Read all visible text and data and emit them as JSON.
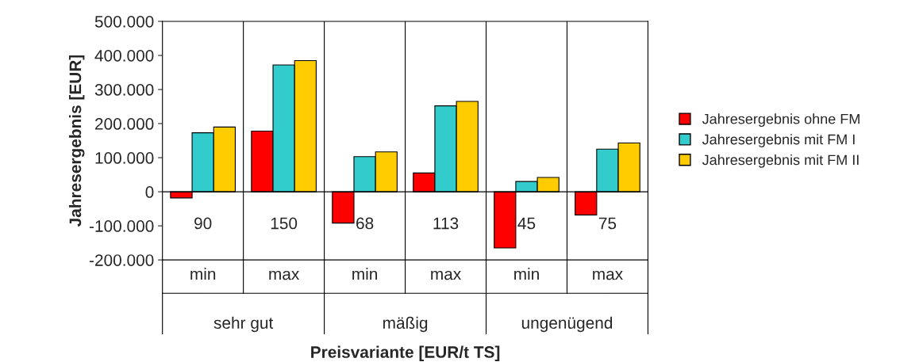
{
  "chart_data": {
    "type": "bar",
    "xlabel": "Preisvariante [EUR/t TS]",
    "ylabel": "Jahresergebnis [EUR]",
    "categories": [
      "90",
      "150",
      "68",
      "113",
      "45",
      "75"
    ],
    "annotations": [
      "min",
      "max",
      "min",
      "max",
      "min",
      "max",
      "sehr gut",
      "mäßig",
      "ungenügend"
    ],
    "series": [
      {
        "name": "Jahresergebnis ohne FM",
        "color": "#ff0000",
        "values": [
          -18000,
          178000,
          -92000,
          55000,
          -165000,
          -68000
        ]
      },
      {
        "name": "Jahresergebnis mit FM I",
        "color": "#33cccc",
        "values": [
          173000,
          372000,
          103000,
          252000,
          30000,
          125000
        ]
      },
      {
        "name": "Jahresergebnis mit FM II",
        "color": "#ffcc00",
        "values": [
          190000,
          385000,
          117000,
          265000,
          42000,
          143000
        ]
      }
    ],
    "ylim": [
      -200000,
      500000
    ],
    "yticks": [
      {
        "value": -200000,
        "label": "-200.000"
      },
      {
        "value": -100000,
        "label": "-100.000"
      },
      0,
      {
        "value": 100000,
        "label": "100.000"
      },
      {
        "value": 200000,
        "label": "200.000"
      },
      {
        "value": 300000,
        "label": "300.000"
      },
      {
        "value": 400000,
        "label": "400.000"
      },
      {
        "value": 500000,
        "label": "500.000"
      }
    ],
    "grid": "x",
    "legend": "right",
    "marker": "square"
  }
}
